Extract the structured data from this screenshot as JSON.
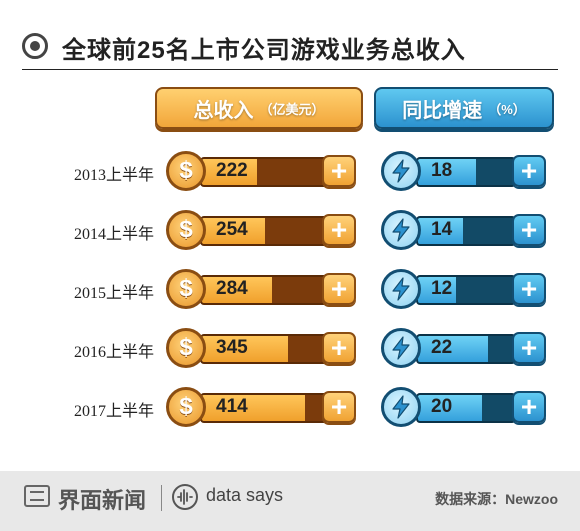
{
  "title": "全球前25名上市公司游戏业务总收入",
  "headers": {
    "revenue_label": "总收入",
    "revenue_unit": "（亿美元）",
    "growth_label": "同比增速",
    "growth_unit": "（%）"
  },
  "icons": {
    "header": "target-icon",
    "revenue": "dollar-coin-icon",
    "growth": "lightning-coin-icon",
    "action": "plus-icon",
    "footer_logo": "jiemian-logo-icon",
    "footer_mark": "waveform-icon"
  },
  "colors": {
    "revenue": "#f2a63a",
    "growth": "#2c92cf"
  },
  "chart_data": {
    "type": "bar",
    "title": "全球前25名上市公司游戏业务总收入",
    "categories": [
      "2013上半年",
      "2014上半年",
      "2015上半年",
      "2016上半年",
      "2017上半年"
    ],
    "series": [
      {
        "name": "总收入（亿美元）",
        "values": [
          222,
          254,
          284,
          345,
          414
        ],
        "ylim": [
          0,
          500
        ]
      },
      {
        "name": "同比增速（%）",
        "values": [
          18,
          14,
          12,
          22,
          20
        ],
        "ylim": [
          0,
          30
        ]
      }
    ]
  },
  "footer": {
    "brand": "界面新闻",
    "tagline": "data says",
    "source": "数据来源：Newzoo"
  }
}
